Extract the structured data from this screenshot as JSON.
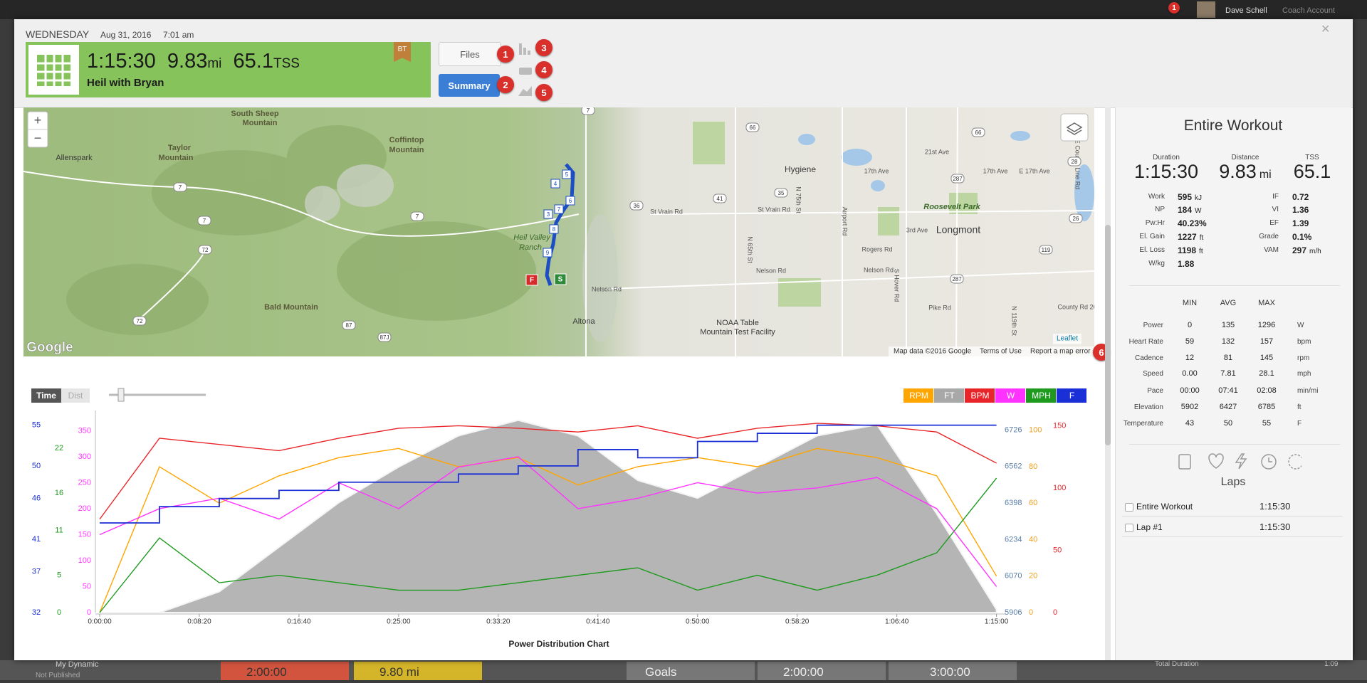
{
  "top_bar": {
    "notifications": "1",
    "user": "Dave Schell",
    "account": "Coach Account"
  },
  "header": {
    "day": "WEDNESDAY",
    "date": "Aug 31, 2016",
    "time": "7:01 am",
    "duration": "1:15:30",
    "distance": "9.83",
    "distance_unit": "mi",
    "tss": "65.1",
    "tss_unit": "TSS",
    "title": "Heil with Bryan",
    "badge": "BT",
    "files": "Files",
    "summary": "Summary",
    "callouts": [
      "1",
      "2",
      "3",
      "4",
      "5",
      "6"
    ]
  },
  "map": {
    "zoom_in": "+",
    "zoom_out": "−",
    "labels": [
      "South Sheep",
      "Mountain",
      "Taylor",
      "Mountain",
      "Allenspark",
      "Coffintop",
      "Mountain",
      "Heil Valley",
      "Ranch",
      "Bald Mountain",
      "Altona",
      "NOAA Table",
      "Mountain Test Facility",
      "Hygiene",
      "Longmont",
      "Roosevelt Park",
      "St Vrain Rd",
      "St Vrain Rd",
      "Nelson Rd",
      "Nelson Rd",
      "Nelson Rd",
      "Rogers Rd",
      "17th Ave",
      "21st Ave",
      "17th Ave",
      "E 17th Ave",
      "3rd Ave",
      "Pike Rd",
      "County Rd 26",
      "N 65th St",
      "Airport Rd",
      "S Hover Rd",
      "N 75th St",
      "N 119th St",
      "E County Line Rd"
    ],
    "shields": [
      "7",
      "7",
      "7",
      "7",
      "72",
      "72",
      "36",
      "41",
      "66",
      "66",
      "287",
      "287",
      "119",
      "28",
      "26",
      "87",
      "87J",
      "35"
    ],
    "route_markers": [
      "5",
      "4",
      "6",
      "7",
      "3",
      "8",
      "9"
    ],
    "finish": "F",
    "start": "S",
    "logo": "Google",
    "leaflet": "Leaflet",
    "attribution": [
      "Map data ©2016 Google",
      "Terms of Use",
      "Report a map error"
    ]
  },
  "chart_data": {
    "type": "line",
    "title": "Power Distribution Chart",
    "toggle": [
      "Time",
      "Dist"
    ],
    "x": [
      0,
      300,
      600,
      900,
      1200,
      1500,
      1800,
      2100,
      2400,
      2700,
      3000,
      3300,
      3600,
      3900,
      4200,
      4500
    ],
    "xlim": [
      0,
      4530
    ],
    "xticks": [
      {
        "value": 0,
        "label": "0:00:00"
      },
      {
        "value": 500,
        "label": "0:08:20"
      },
      {
        "value": 1000,
        "label": "0:16:40"
      },
      {
        "value": 1500,
        "label": "0:25:00"
      },
      {
        "value": 2000,
        "label": "0:33:20"
      },
      {
        "value": 2500,
        "label": "0:41:40"
      },
      {
        "value": 3000,
        "label": "0:50:00"
      },
      {
        "value": 3500,
        "label": "0:58:20"
      },
      {
        "value": 4000,
        "label": "1:06:40"
      },
      {
        "value": 4500,
        "label": "1:15:00"
      }
    ],
    "series": [
      {
        "name": "RPM",
        "color": "#ffa500",
        "values": [
          0,
          80,
          60,
          75,
          85,
          90,
          80,
          85,
          70,
          80,
          85,
          80,
          90,
          85,
          75,
          20
        ],
        "ylim": [
          0,
          107.7
        ],
        "yticks": [
          0,
          20,
          40,
          60,
          80,
          100
        ]
      },
      {
        "name": "FT",
        "color": "#a8a8a8",
        "values": [
          5906,
          5906,
          6000,
          6200,
          6400,
          6560,
          6700,
          6770,
          6700,
          6500,
          6420,
          6560,
          6700,
          6750,
          6350,
          5920
        ],
        "ylim": [
          5906,
          6788
        ],
        "yticks": [
          5906,
          6070,
          6234,
          6398,
          6562,
          6726
        ]
      },
      {
        "name": "BPM",
        "color": "#e8262a",
        "values": [
          75,
          140,
          135,
          130,
          140,
          148,
          150,
          148,
          145,
          150,
          140,
          148,
          152,
          150,
          145,
          120
        ],
        "ylim": [
          0,
          157.7
        ],
        "yticks": [
          0,
          50,
          100,
          150
        ]
      },
      {
        "name": "W",
        "color": "#ff33ff",
        "values": [
          150,
          200,
          220,
          180,
          250,
          200,
          280,
          300,
          200,
          220,
          250,
          230,
          240,
          260,
          200,
          50
        ],
        "ylim": [
          0,
          378
        ],
        "yticks": [
          0,
          50,
          100,
          150,
          200,
          250,
          300,
          350
        ]
      },
      {
        "name": "MPH",
        "color": "#1e9a1e",
        "values": [
          0,
          10,
          4,
          5,
          4,
          3,
          3,
          4,
          5,
          6,
          3,
          5,
          3,
          5,
          8,
          18
        ],
        "ylim": [
          0,
          26.3
        ],
        "yticks": [
          0,
          5,
          11,
          16,
          22
        ]
      },
      {
        "name": "F",
        "color": "#1a2fd6",
        "values": [
          43,
          45,
          46,
          47,
          48,
          48,
          49,
          50,
          52,
          51,
          53,
          54,
          55,
          55,
          55,
          55
        ],
        "ylim": [
          32,
          56.1
        ],
        "yticks": [
          32,
          37,
          41,
          46,
          50,
          55
        ]
      }
    ]
  },
  "summary": {
    "title": "Entire Workout",
    "headline": [
      {
        "label": "Duration",
        "value": "1:15:30"
      },
      {
        "label": "Distance",
        "value": "9.83",
        "unit": "mi"
      },
      {
        "label": "TSS",
        "value": "65.1"
      }
    ],
    "metrics_left": [
      {
        "label": "Work",
        "value": "595",
        "unit": "kJ"
      },
      {
        "label": "NP",
        "value": "184",
        "unit": "W"
      },
      {
        "label": "Pw:Hr",
        "value": "40.23%"
      },
      {
        "label": "El. Gain",
        "value": "1227",
        "unit": "ft"
      },
      {
        "label": "El. Loss",
        "value": "1198",
        "unit": "ft"
      },
      {
        "label": "W/kg",
        "value": "1.88"
      }
    ],
    "metrics_right": [
      {
        "label": "IF",
        "value": "0.72"
      },
      {
        "label": "VI",
        "value": "1.36"
      },
      {
        "label": "EF",
        "value": "1.39"
      },
      {
        "label": "Grade",
        "value": "0.1%"
      },
      {
        "label": "VAM",
        "value": "297",
        "unit": "m/h"
      }
    ],
    "table": {
      "columns": [
        "MIN",
        "AVG",
        "MAX"
      ],
      "rows": [
        {
          "label": "Power",
          "values": [
            "0",
            "135",
            "1296"
          ],
          "unit": "W"
        },
        {
          "label": "Heart Rate",
          "values": [
            "59",
            "132",
            "157"
          ],
          "unit": "bpm"
        },
        {
          "label": "Cadence",
          "values": [
            "12",
            "81",
            "145"
          ],
          "unit": "rpm"
        },
        {
          "label": "Speed",
          "values": [
            "0.00",
            "7.81",
            "28.1"
          ],
          "unit": "mph"
        },
        {
          "label": "Pace",
          "values": [
            "00:00",
            "07:41",
            "02:08"
          ],
          "unit": "min/mi"
        },
        {
          "label": "Elevation",
          "values": [
            "5902",
            "6427",
            "6785"
          ],
          "unit": "ft"
        },
        {
          "label": "Temperature",
          "values": [
            "43",
            "50",
            "55"
          ],
          "unit": "F"
        }
      ]
    },
    "laps_title": "Laps",
    "laps": [
      {
        "name": "Entire Workout",
        "time": "1:15:30"
      },
      {
        "name": "Lap #1",
        "time": "1:15:30"
      }
    ]
  },
  "bottom": {
    "title": "My Dynamic",
    "subtitle": "Not Published",
    "tiles": [
      "2:00:00",
      "9.80 mi",
      "Goals",
      "2:00:00",
      "3:00:00"
    ],
    "total_label": "Total Duration",
    "total_value": "1:09"
  }
}
